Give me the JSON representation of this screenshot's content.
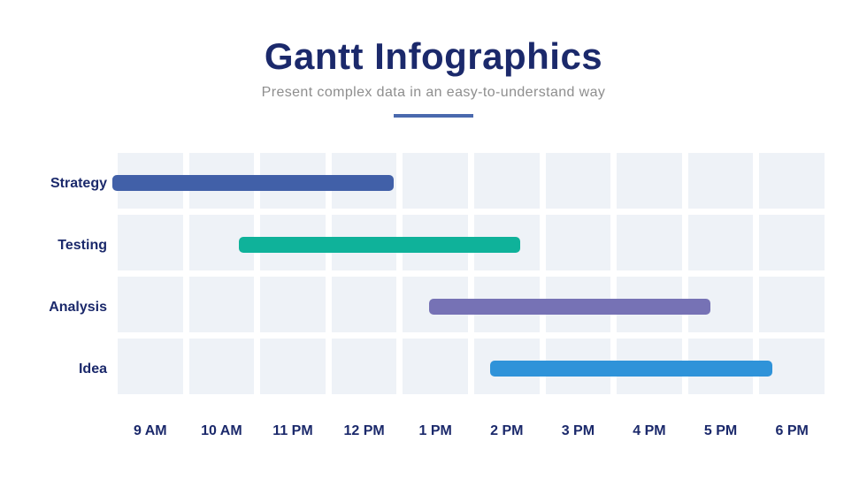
{
  "page": {
    "title": "Gantt Infographics",
    "subtitle": "Present complex data in an easy-to-understand way",
    "colors": {
      "background": "#ffffff",
      "title": "#1b296b",
      "subtitle": "#8e8e8e",
      "divider": "#4a69ae",
      "grid_cell": "#eef2f7",
      "axis_label": "#1b296b"
    }
  },
  "chart_data": {
    "type": "bar",
    "variant": "gantt",
    "title": "Gantt Infographics",
    "subtitle": "Present complex data in an easy-to-understand way",
    "x_axis": {
      "tick_labels": [
        "9 AM",
        "10 AM",
        "11 PM",
        "12 PM",
        "1 PM",
        "2 PM",
        "3 PM",
        "4 PM",
        "5 PM",
        "6 PM"
      ]
    },
    "grid": {
      "columns": 10,
      "row_count": 4,
      "cell_color": "#eef2f7"
    },
    "rows": [
      {
        "label": "Strategy",
        "color": "#4160a8",
        "start_time": "8:30 AM",
        "end_time": "12:30 PM",
        "start_pct": -0.75,
        "width_pct": 39.8
      },
      {
        "label": "Testing",
        "color": "#0fb29a",
        "start_time": "10:10 AM",
        "end_time": "2:10 PM",
        "start_pct": 17.15,
        "width_pct": 39.8
      },
      {
        "label": "Analysis",
        "color": "#7672b5",
        "start_time": "12:50 PM",
        "end_time": "4:50 PM",
        "start_pct": 44.05,
        "width_pct": 39.8
      },
      {
        "label": "Idea",
        "color": "#2f93d9",
        "start_time": "1:45 PM",
        "end_time": "5:45 PM",
        "start_pct": 52.7,
        "width_pct": 39.9
      }
    ]
  }
}
